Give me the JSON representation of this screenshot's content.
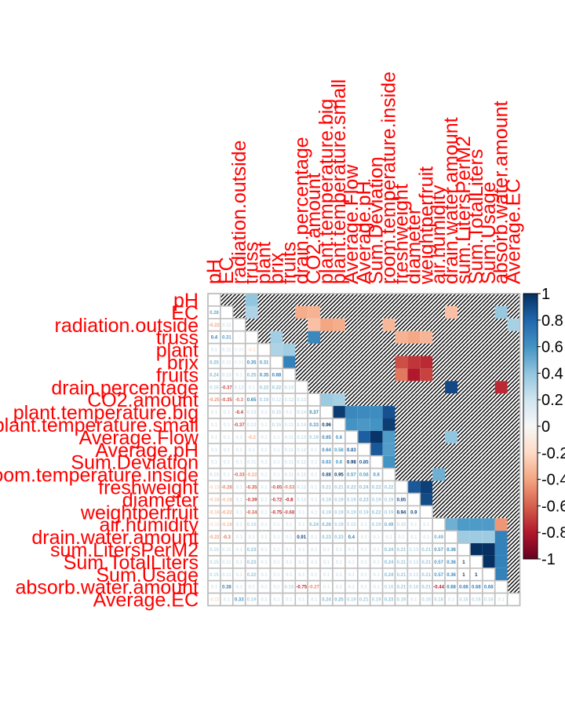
{
  "chart_data": {
    "type": "heatmap",
    "variables": [
      "pH",
      "EC",
      "radiation.outside",
      "truss",
      "plant",
      "brix",
      "fruits",
      "drain.percentage",
      "CO2.amount",
      "plant.temperature.big",
      "plant.temperature.small",
      "Average.Flow",
      "Average.pH",
      "Sum.Deviation",
      "room.temperature.inside",
      "freshweight",
      "diameter",
      "weightperfruit",
      "air.humidity",
      "drain.water.amount",
      "sum.LitersPerM2",
      "Sum.TotalLiters",
      "Sum.Usage",
      "absorb.water.amount",
      "Average.EC"
    ],
    "color_scale": {
      "min": -1,
      "max": 1,
      "ticks": [
        "1",
        "0.8",
        "0.6",
        "0.4",
        "0.2",
        "0",
        "-0.2",
        "-0.4",
        "-0.6",
        "-0.8",
        "-1"
      ],
      "low_color": "#67001f",
      "mid_color": "#f7f7f7",
      "high_color": "#053061"
    },
    "lower_triangle_values": [
      [
        "0.28"
      ],
      [
        "-0.22",
        "0.11"
      ],
      [
        "0.4",
        "0.31",
        "0"
      ],
      [
        "0.1",
        "0.11",
        "0.05",
        "-0.1"
      ],
      [
        "0.25",
        "0.11",
        "0.05",
        "0.35",
        "0.31"
      ],
      [
        "0.24",
        "0.13",
        "0.1",
        "0.25",
        "0.35",
        "0.68"
      ],
      [
        "0.16",
        "-0.37",
        "0.12",
        "0.1",
        "0.22",
        "0.22",
        "0.14"
      ],
      [
        "-0.25",
        "-0.35",
        "-0.3",
        "0.65",
        "0.19",
        "0.12",
        "0.12",
        "0.13"
      ],
      [
        "0.1",
        "0.1",
        "-0.4",
        "0.13",
        "0.1",
        "0.15",
        "0.1",
        "0.14",
        "0.37"
      ],
      [
        "0.1",
        "0.1",
        "-0.37",
        "0.13",
        "0.1",
        "0.15",
        "0.11",
        "0.14",
        "0.33",
        "0.96"
      ],
      [
        "0.1",
        "0.1",
        "0.1",
        "-0.2",
        "0.1",
        "0.1",
        "0.11",
        "0.13",
        "0.19",
        "0.65",
        "0.6"
      ],
      [
        "0.1",
        "0.1",
        "0.1",
        "0.1",
        "0.1",
        "0.1",
        "0.11",
        "0.12",
        "0.1",
        "0.64",
        "0.58",
        "0.83"
      ],
      [
        "0.1",
        "0.1",
        "0.1",
        "0.11",
        "0.1",
        "0.1",
        "0.11",
        "0.12",
        "0.1",
        "0.63",
        "0.6",
        "0.98",
        "0.85"
      ],
      [
        "0.13",
        "0.1",
        "-0.33",
        "-0.22",
        "0.1",
        "0.1",
        "0.11",
        "0.12",
        "0.1",
        "0.88",
        "0.95",
        "0.57",
        "0.56",
        "0.6"
      ],
      [
        "-0.13",
        "-0.28",
        "0.1",
        "-0.35",
        "0.1",
        "-0.65",
        "-0.53",
        "0.12",
        "0.1",
        "0.21",
        "0.21",
        "0.22",
        "0.24",
        "0.22",
        "0.22"
      ],
      [
        "-0.16",
        "-0.18",
        "0.1",
        "-0.39",
        "0.1",
        "-0.72",
        "-0.8",
        "0.12",
        "0.1",
        "0.19",
        "0.19",
        "0.19",
        "0.23",
        "0.19",
        "0.19",
        "0.85"
      ],
      [
        "-0.16",
        "-0.22",
        "0.1",
        "-0.34",
        "0.1",
        "-0.75",
        "-0.68",
        "0.1",
        "0.1",
        "0.19",
        "0.19",
        "0.19",
        "0.19",
        "0.22",
        "0.19",
        "0.94",
        "0.9"
      ],
      [
        "-0.11",
        "-0.18",
        "0.1",
        "0.16",
        "0.1",
        "0.1",
        "0.1",
        "0.1",
        "0.24",
        "0.26",
        "0.19",
        "0.15",
        "0.1",
        "0.19",
        "0.49",
        "0.15",
        "0.1",
        "0.1"
      ],
      [
        "-0.22",
        "-0.3",
        "0.1",
        "0.1",
        "0.1",
        "0.1",
        "0.1",
        "0.91",
        "0.1",
        "0.23",
        "0.23",
        "0.4",
        "0.1",
        "0.1",
        "0.1",
        "0.1",
        "0.1",
        "0.1",
        "0.49"
      ],
      [
        "0.15",
        "0.11",
        "0.1",
        "0.23",
        "0.1",
        "0.1",
        "0.1",
        "0.1",
        "0.1",
        "0.1",
        "0.1",
        "0.1",
        "0.1",
        "0.1",
        "0.24",
        "0.21",
        "0.13",
        "0.21",
        "0.57",
        "0.36"
      ],
      [
        "0.15",
        "0.11",
        "0.1",
        "0.23",
        "0.1",
        "0.1",
        "0.1",
        "0.1",
        "0.1",
        "0.1",
        "0.1",
        "0.1",
        "0.1",
        "0.1",
        "0.24",
        "0.21",
        "0.13",
        "0.21",
        "0.57",
        "0.36",
        "1"
      ],
      [
        "0.15",
        "0.11",
        "0.1",
        "0.22",
        "0.1",
        "0.1",
        "0.1",
        "0.1",
        "0.1",
        "0.1",
        "0.1",
        "0.1",
        "0.1",
        "0.1",
        "0.24",
        "0.21",
        "0.13",
        "0.21",
        "0.57",
        "0.36",
        "1",
        "1"
      ],
      [
        "0.1",
        "0.38",
        "0.1",
        "0.1",
        "0.1",
        "0.1",
        "0.16",
        "-0.75",
        "-0.27",
        "0.1",
        "0.1",
        "0.1",
        "0.1",
        "0.1",
        "0.16",
        "0.21",
        "0.16",
        "0.21",
        "-0.44",
        "0.68",
        "0.68",
        "0.68",
        "0.68"
      ],
      [
        "-0.11",
        "0.1",
        "0.33",
        "0.19",
        "0.1",
        "0.1",
        "0.1",
        "0.1",
        "0.1",
        "0.24",
        "0.25",
        "0.19",
        "0.21",
        "0.19",
        "0.23",
        "0.19",
        "0.1",
        "0.16",
        "0.18",
        "0.1",
        "0.16",
        "0.16",
        "0.16",
        "0.1"
      ]
    ]
  }
}
